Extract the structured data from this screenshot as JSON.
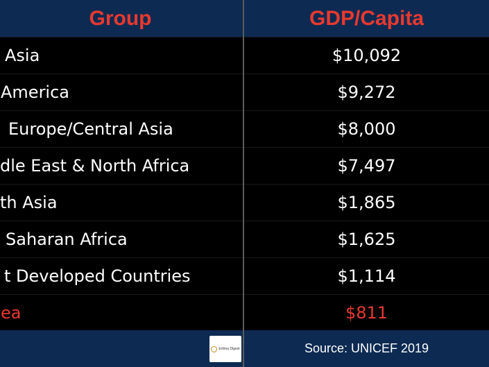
{
  "header": {
    "group_label": "Group",
    "gdp_label": "GDP/Capita"
  },
  "rows": [
    {
      "name": "Asia",
      "value": "$10,092"
    },
    {
      "name": "America",
      "value": "$9,272"
    },
    {
      "name": "Europe/Central Asia",
      "value": "$8,000"
    },
    {
      "name": "dle East & North Africa",
      "value": "$7,497"
    },
    {
      "name": "th Asia",
      "value": "$1,865"
    },
    {
      "name": "Saharan Africa",
      "value": "$1,625"
    },
    {
      "name": "t Developed Countries",
      "value": "$1,114"
    },
    {
      "name": "ea",
      "value": "$811"
    }
  ],
  "footer": {
    "logo_text": "Eritrea Digest",
    "source": "Source: UNICEF 2019"
  },
  "colors": {
    "header_bg": "#0d2a52",
    "header_text": "#e8392f",
    "highlight": "#e8392f",
    "row_text": "#ffffff"
  }
}
